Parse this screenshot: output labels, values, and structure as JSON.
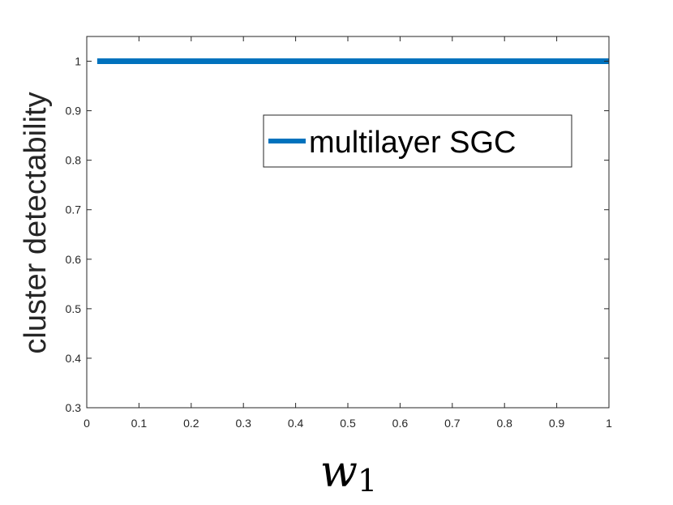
{
  "chart_data": {
    "type": "line",
    "title": "",
    "xlabel": {
      "variable": "w",
      "subscript": "1"
    },
    "ylabel": "cluster detectability",
    "xlim": [
      0,
      1
    ],
    "ylim": [
      0.3,
      1.05
    ],
    "x_ticks": [
      "0",
      "0.1",
      "0.2",
      "0.3",
      "0.4",
      "0.5",
      "0.6",
      "0.7",
      "0.8",
      "0.9",
      "1"
    ],
    "y_ticks": [
      "0.3",
      "0.4",
      "0.5",
      "0.6",
      "0.7",
      "0.8",
      "0.9",
      "1"
    ],
    "grid": false,
    "legend_position": "upper-right",
    "series": [
      {
        "name": "multilayer SGC",
        "color": "#0072BD",
        "x": [
          0.02,
          0.1,
          0.2,
          0.3,
          0.4,
          0.5,
          0.6,
          0.7,
          0.8,
          0.9,
          1.0
        ],
        "y": [
          1,
          1,
          1,
          1,
          1,
          1,
          1,
          1,
          1,
          1,
          1
        ]
      }
    ]
  }
}
